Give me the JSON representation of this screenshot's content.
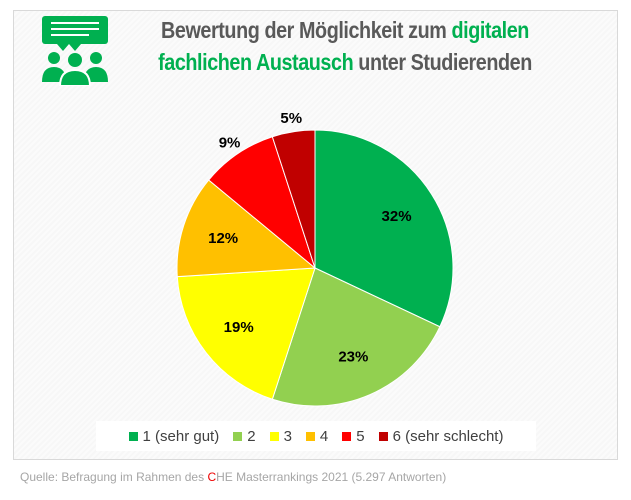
{
  "title": {
    "part1": "Bewertung der Möglichkeit zum ",
    "part2": "digitalen",
    "part3": "fachlichen Austausch",
    "part4": " unter Studierenden"
  },
  "source": {
    "prefix": "Quelle: Befragung im Rahmen des ",
    "che_c": "C",
    "suffix": "HE Masterrankings 2021 (5.297 Antworten)"
  },
  "chart_data": {
    "type": "pie",
    "title": "Bewertung der Möglichkeit zum digitalen fachlichen Austausch unter Studierenden",
    "categories": [
      "1 (sehr gut)",
      "2",
      "3",
      "4",
      "5",
      "6 (sehr schlecht)"
    ],
    "values": [
      32,
      23,
      19,
      12,
      9,
      5
    ],
    "labels": [
      "32%",
      "23%",
      "19%",
      "12%",
      "9%",
      "5%"
    ],
    "colors": [
      "#00b050",
      "#92d050",
      "#ffff00",
      "#ffc000",
      "#ff0000",
      "#c00000"
    ],
    "legend": "bottom"
  }
}
